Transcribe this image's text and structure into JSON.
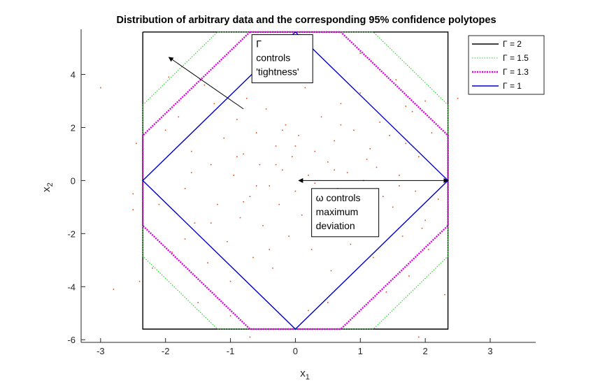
{
  "chart_data": {
    "type": "line",
    "title": "Distribution of arbitrary data and the corresponding 95% confidence polytopes",
    "xlabel": "x",
    "xlabel_sub": "1",
    "ylabel": "x",
    "ylabel_sub": "2",
    "xlim": [
      -3.3,
      3.7
    ],
    "ylim": [
      -6.1,
      5.7
    ],
    "xticks": [
      -3,
      -2,
      -1,
      0,
      1,
      2,
      3
    ],
    "yticks": [
      -6,
      -4,
      -2,
      0,
      2,
      4
    ],
    "grid": false,
    "legend_position": "top-right",
    "series": [
      {
        "name": "Γ = 2",
        "color": "#000000",
        "style": "solid",
        "x": [
          -2.35,
          2.35,
          2.35,
          -2.35,
          -2.35
        ],
        "y": [
          5.6,
          5.6,
          -5.6,
          -5.6,
          5.6
        ]
      },
      {
        "name": "Γ = 1.5",
        "color": "#22cc22",
        "style": "dotted",
        "x": [
          -1.2,
          1.2,
          2.35,
          2.35,
          1.2,
          -1.2,
          -2.35,
          -2.35,
          -1.2
        ],
        "y": [
          5.6,
          5.6,
          2.85,
          -2.85,
          -5.6,
          -5.6,
          -2.85,
          2.85,
          5.6
        ]
      },
      {
        "name": "Γ = 1.3",
        "color": "#dd00dd",
        "style": "dotted-thick",
        "x": [
          -0.7,
          0.7,
          2.35,
          2.35,
          0.7,
          -0.7,
          -2.35,
          -2.35,
          -0.7
        ],
        "y": [
          5.6,
          5.6,
          1.7,
          -1.7,
          -5.6,
          -5.6,
          -1.7,
          1.7,
          5.6
        ]
      },
      {
        "name": "Γ = 1",
        "color": "#0000cc",
        "style": "solid",
        "x": [
          0,
          2.35,
          0,
          -2.35,
          0
        ],
        "y": [
          5.6,
          0,
          -5.6,
          0,
          5.6
        ]
      }
    ],
    "scatter": {
      "color": "#d9531e",
      "points": [
        [
          -2.8,
          -4.1
        ],
        [
          -3.0,
          3.5
        ],
        [
          -2.5,
          -0.5
        ],
        [
          -2.45,
          1.4
        ],
        [
          -2.5,
          -1.1
        ],
        [
          -2.4,
          -3.8
        ],
        [
          -2.2,
          -3.3
        ],
        [
          -2.1,
          -0.9
        ],
        [
          -1.95,
          3.9
        ],
        [
          -1.9,
          -2.7
        ],
        [
          -1.8,
          2.4
        ],
        [
          -1.7,
          -0.3
        ],
        [
          -1.6,
          1.1
        ],
        [
          -1.55,
          -1.6
        ],
        [
          -1.5,
          -4.6
        ],
        [
          -1.4,
          3.6
        ],
        [
          -1.35,
          -3.1
        ],
        [
          -1.3,
          0.6
        ],
        [
          -1.25,
          2.9
        ],
        [
          -1.2,
          -0.9
        ],
        [
          -1.1,
          1.6
        ],
        [
          -1.05,
          -2.3
        ],
        [
          -1.0,
          -3.8
        ],
        [
          -0.95,
          0.2
        ],
        [
          -0.9,
          2.3
        ],
        [
          -0.85,
          -1.4
        ],
        [
          -0.8,
          1.0
        ],
        [
          -0.75,
          3.1
        ],
        [
          -0.7,
          -0.6
        ],
        [
          -0.65,
          -2.9
        ],
        [
          -0.6,
          1.8
        ],
        [
          -0.55,
          0.6
        ],
        [
          -0.5,
          -1.7
        ],
        [
          -0.45,
          2.7
        ],
        [
          -0.4,
          -0.2
        ],
        [
          -0.35,
          -3.3
        ],
        [
          -0.3,
          1.3
        ],
        [
          -0.25,
          -0.9
        ],
        [
          -0.2,
          0.4
        ],
        [
          -0.15,
          2.1
        ],
        [
          -0.1,
          -2.1
        ],
        [
          -0.05,
          0.9
        ],
        [
          0.0,
          -0.4
        ],
        [
          0.05,
          1.7
        ],
        [
          0.1,
          -1.3
        ],
        [
          0.15,
          3.5
        ],
        [
          0.2,
          0.2
        ],
        [
          0.25,
          -2.6
        ],
        [
          0.3,
          1.1
        ],
        [
          0.35,
          -0.7
        ],
        [
          0.4,
          2.4
        ],
        [
          0.45,
          -1.9
        ],
        [
          0.5,
          0.7
        ],
        [
          0.55,
          -3.4
        ],
        [
          0.6,
          1.5
        ],
        [
          0.65,
          -0.3
        ],
        [
          0.7,
          2.9
        ],
        [
          0.75,
          -1.2
        ],
        [
          0.8,
          0.3
        ],
        [
          0.85,
          -2.4
        ],
        [
          0.9,
          1.9
        ],
        [
          0.95,
          -0.8
        ],
        [
          1.0,
          3.3
        ],
        [
          1.05,
          0.0
        ],
        [
          1.1,
          -1.6
        ],
        [
          1.15,
          1.2
        ],
        [
          1.2,
          -2.9
        ],
        [
          1.25,
          0.5
        ],
        [
          1.3,
          2.2
        ],
        [
          1.35,
          -0.6
        ],
        [
          1.4,
          -4.2
        ],
        [
          1.45,
          1.7
        ],
        [
          1.5,
          -1.0
        ],
        [
          1.55,
          3.8
        ],
        [
          1.6,
          0.2
        ],
        [
          1.65,
          -2.1
        ],
        [
          1.7,
          1.4
        ],
        [
          1.75,
          -3.6
        ],
        [
          1.8,
          2.6
        ],
        [
          1.85,
          -0.4
        ],
        [
          1.9,
          0.9
        ],
        [
          1.95,
          -1.8
        ],
        [
          2.0,
          3.0
        ],
        [
          2.05,
          -2.6
        ],
        [
          2.1,
          1.8
        ],
        [
          2.2,
          -0.7
        ],
        [
          2.3,
          -4.3
        ],
        [
          2.5,
          3.1
        ],
        [
          -1.3,
          -1.6
        ],
        [
          -0.9,
          0.9
        ],
        [
          -0.6,
          -0.2
        ],
        [
          -0.3,
          0.6
        ],
        [
          0.0,
          1.3
        ],
        [
          0.3,
          -0.1
        ],
        [
          0.6,
          0.4
        ],
        [
          0.9,
          -0.5
        ],
        [
          -0.8,
          -0.8
        ],
        [
          -0.2,
          1.9
        ],
        [
          0.4,
          -1.4
        ],
        [
          1.1,
          0.8
        ],
        [
          -1.6,
          0.3
        ],
        [
          1.6,
          -0.2
        ],
        [
          -0.4,
          -2.6
        ],
        [
          0.7,
          2.1
        ],
        [
          -2.0,
          1.9
        ],
        [
          2.0,
          -1.5
        ],
        [
          -1.0,
          -5.1
        ],
        [
          1.0,
          4.8
        ],
        [
          -0.5,
          4.3
        ],
        [
          0.5,
          -4.6
        ],
        [
          -1.7,
          -2.2
        ],
        [
          1.7,
          2.8
        ],
        [
          1.9,
          -5.9
        ],
        [
          -0.7,
          -5.9
        ],
        [
          0.2,
          -4.9
        ],
        [
          -0.1,
          4.5
        ]
      ]
    },
    "annotations": [
      {
        "lines": [
          "Γ",
          "controls",
          "'tightness'"
        ]
      },
      {
        "lines": [
          "ω controls",
          "maximum",
          "deviation"
        ]
      }
    ]
  }
}
